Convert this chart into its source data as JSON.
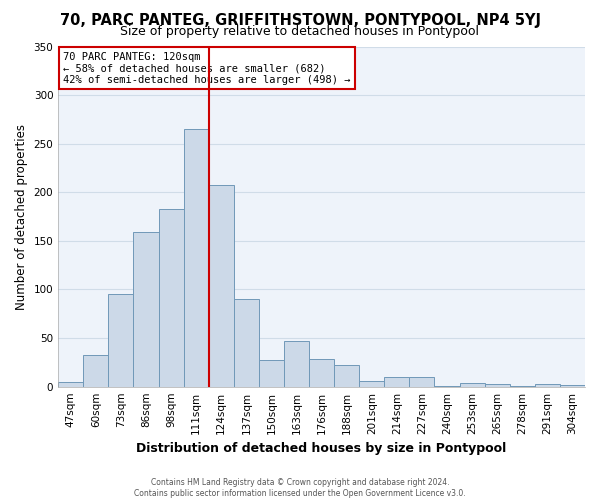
{
  "title": "70, PARC PANTEG, GRIFFITHSTOWN, PONTYPOOL, NP4 5YJ",
  "subtitle": "Size of property relative to detached houses in Pontypool",
  "xlabel": "Distribution of detached houses by size in Pontypool",
  "ylabel": "Number of detached properties",
  "bar_labels": [
    "47sqm",
    "60sqm",
    "73sqm",
    "86sqm",
    "98sqm",
    "111sqm",
    "124sqm",
    "137sqm",
    "150sqm",
    "163sqm",
    "176sqm",
    "188sqm",
    "201sqm",
    "214sqm",
    "227sqm",
    "240sqm",
    "253sqm",
    "265sqm",
    "278sqm",
    "291sqm",
    "304sqm"
  ],
  "bar_values": [
    5,
    33,
    95,
    159,
    183,
    265,
    208,
    90,
    27,
    47,
    28,
    22,
    6,
    10,
    10,
    1,
    4,
    3,
    1,
    3,
    2
  ],
  "bar_color": "#ccd9e8",
  "bar_edge_color": "#7098b8",
  "vline_color": "#cc0000",
  "vline_pos": 6,
  "ylim": [
    0,
    350
  ],
  "yticks": [
    0,
    50,
    100,
    150,
    200,
    250,
    300,
    350
  ],
  "annotation_title": "70 PARC PANTEG: 120sqm",
  "annotation_line1": "← 58% of detached houses are smaller (682)",
  "annotation_line2": "42% of semi-detached houses are larger (498) →",
  "annotation_box_color": "#ffffff",
  "annotation_box_edge": "#cc0000",
  "footer1": "Contains HM Land Registry data © Crown copyright and database right 2024.",
  "footer2": "Contains public sector information licensed under the Open Government Licence v3.0.",
  "bg_color": "#ffffff",
  "plot_bg_color": "#eef3fa",
  "grid_color": "#d0dce8",
  "title_fontsize": 10.5,
  "subtitle_fontsize": 9,
  "xlabel_fontsize": 9,
  "ylabel_fontsize": 8.5,
  "tick_fontsize": 7.5
}
